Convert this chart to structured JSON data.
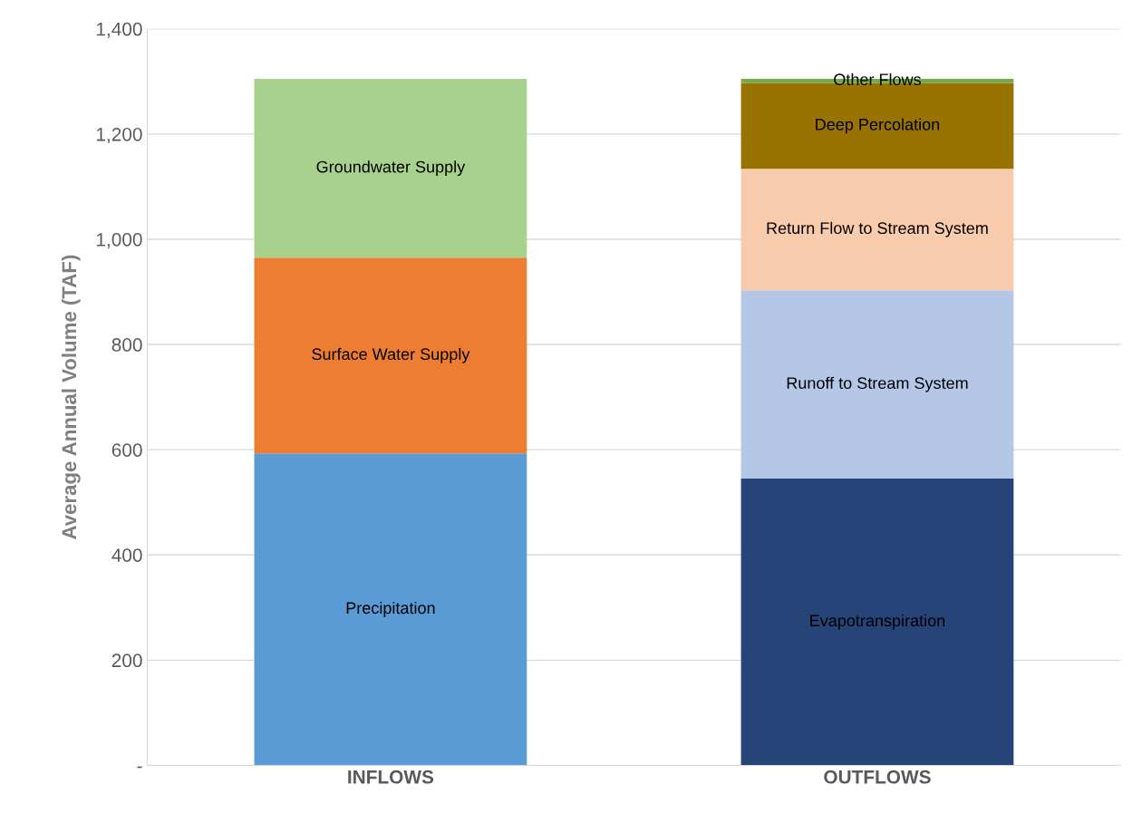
{
  "chart_data": {
    "type": "bar",
    "stacked": true,
    "ylabel": "Average Annual Volume (TAF)",
    "categories": [
      "INFLOWS",
      "OUTFLOWS"
    ],
    "series": [
      {
        "name": "Precipitation",
        "color": "#5b9bd5",
        "values": [
          593,
          null
        ]
      },
      {
        "name": "Surface Water Supply",
        "color": "#ed7d31",
        "values": [
          372,
          null
        ]
      },
      {
        "name": "Groundwater Supply",
        "color": "#a9d18e",
        "values": [
          340,
          null
        ]
      },
      {
        "name": "Evapotranspiration",
        "color": "#264478",
        "values": [
          null,
          545
        ]
      },
      {
        "name": "Runoff to Stream System",
        "color": "#b4c7e7",
        "values": [
          null,
          358
        ]
      },
      {
        "name": "Return Flow to Stream System",
        "color": "#f8cbad",
        "values": [
          null,
          231
        ]
      },
      {
        "name": "Deep Percolation",
        "color": "#997300",
        "values": [
          null,
          163
        ]
      },
      {
        "name": "Other Flows",
        "color": "#70ad47",
        "values": [
          null,
          8
        ]
      }
    ],
    "ylim": [
      0,
      1400
    ],
    "yticks": [
      {
        "value": 0,
        "label": "-"
      },
      {
        "value": 200,
        "label": "200"
      },
      {
        "value": 400,
        "label": "400"
      },
      {
        "value": 600,
        "label": "600"
      },
      {
        "value": 800,
        "label": "800"
      },
      {
        "value": 1000,
        "label": "1,000"
      },
      {
        "value": 1200,
        "label": "1,200"
      },
      {
        "value": 1400,
        "label": "1,400"
      }
    ],
    "grid": "y",
    "legend": false
  }
}
